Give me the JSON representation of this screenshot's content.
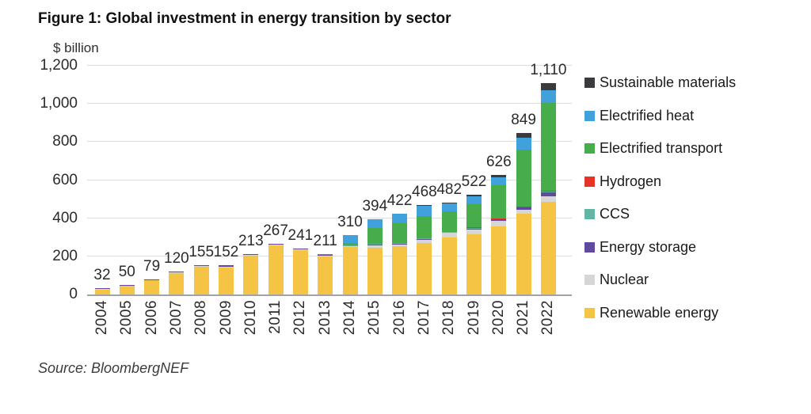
{
  "title": "Figure 1: Global investment in energy transition by sector",
  "y_axis_title": "$ billion",
  "source": "Source: BloombergNEF",
  "colors": {
    "renewable_energy": "#F6C445",
    "nuclear": "#D6D6D6",
    "energy_storage": "#5F4A9E",
    "ccs": "#62B5A5",
    "hydrogen": "#E63323",
    "electrified_transport": "#47AD4A",
    "electrified_heat": "#41A1DC",
    "sustainable_materials": "#3B3B3D",
    "gridline": "#dcdcdc",
    "axis_line": "#a3a3a3"
  },
  "legend": {
    "items": [
      {
        "label": "Sustainable materials",
        "color_key": "sustainable_materials"
      },
      {
        "label": "Electrified heat",
        "color_key": "electrified_heat"
      },
      {
        "label": "Electrified transport",
        "color_key": "electrified_transport"
      },
      {
        "label": "Hydrogen",
        "color_key": "hydrogen"
      },
      {
        "label": "CCS",
        "color_key": "ccs"
      },
      {
        "label": "Energy storage",
        "color_key": "energy_storage"
      },
      {
        "label": "Nuclear",
        "color_key": "nuclear"
      },
      {
        "label": "Renewable energy",
        "color_key": "renewable_energy"
      }
    ]
  },
  "chart_data": {
    "type": "bar",
    "stacked": true,
    "title": "Figure 1: Global investment in energy transition by sector",
    "ylabel": "$ billion",
    "xlabel": "",
    "grid": true,
    "legend_position": "right",
    "ylim": [
      0,
      1200
    ],
    "yticks": [
      {
        "value": 0,
        "label": "0"
      },
      {
        "value": 200,
        "label": "200"
      },
      {
        "value": 400,
        "label": "400"
      },
      {
        "value": 600,
        "label": "600"
      },
      {
        "value": 800,
        "label": "800"
      },
      {
        "value": 1000,
        "label": "1,000"
      },
      {
        "value": 1200,
        "label": "1,200"
      }
    ],
    "categories": [
      "2004",
      "2005",
      "2006",
      "2007",
      "2008",
      "2009",
      "2010",
      "2011",
      "2012",
      "2013",
      "2014",
      "2015",
      "2016",
      "2017",
      "2018",
      "2019",
      "2020",
      "2021",
      "2022"
    ],
    "totals": [
      32,
      50,
      79,
      120,
      155,
      152,
      213,
      267,
      241,
      211,
      310,
      394,
      422,
      468,
      482,
      522,
      626,
      849,
      1110
    ],
    "totals_display": [
      "32",
      "50",
      "79",
      "120",
      "155",
      "152",
      "213",
      "267",
      "241",
      "211",
      "310",
      "394",
      "422",
      "468",
      "482",
      "522",
      "626",
      "849",
      "1,110"
    ],
    "series": [
      {
        "name": "Renewable energy",
        "color_key": "renewable_energy",
        "values": [
          30,
          47,
          75,
          113,
          147,
          143,
          204,
          257,
          231,
          200,
          251,
          246,
          255,
          270,
          298,
          314,
          358,
          424,
          486
        ]
      },
      {
        "name": "Nuclear",
        "color_key": "nuclear",
        "values": [
          1,
          1,
          2,
          3,
          4,
          4,
          4,
          4,
          4,
          4,
          3,
          12,
          6,
          16,
          24,
          28,
          28,
          20,
          27
        ]
      },
      {
        "name": "Energy storage",
        "color_key": "energy_storage",
        "values": [
          1,
          2,
          2,
          4,
          4,
          5,
          5,
          6,
          6,
          4,
          3,
          4,
          8,
          8,
          5,
          6,
          8,
          14,
          25
        ]
      },
      {
        "name": "CCS",
        "color_key": "ccs",
        "values": [
          0,
          0,
          0,
          0,
          0,
          0,
          0,
          0,
          0,
          0,
          1,
          2,
          2,
          2,
          2,
          2,
          3,
          2,
          3
        ]
      },
      {
        "name": "Hydrogen",
        "color_key": "hydrogen",
        "values": [
          0,
          0,
          0,
          0,
          0,
          0,
          0,
          0,
          0,
          0,
          0,
          0,
          0,
          0,
          0,
          1,
          2,
          2,
          2
        ]
      },
      {
        "name": "Electrified transport",
        "color_key": "electrified_transport",
        "values": [
          0,
          0,
          0,
          0,
          0,
          0,
          0,
          0,
          0,
          3,
          12,
          85,
          101,
          117,
          108,
          123,
          174,
          300,
          460
        ]
      },
      {
        "name": "Electrified heat",
        "color_key": "electrified_heat",
        "values": [
          0,
          0,
          0,
          0,
          0,
          0,
          0,
          0,
          0,
          0,
          40,
          45,
          50,
          54,
          41,
          40,
          43,
          62,
          68
        ]
      },
      {
        "name": "Sustainable materials",
        "color_key": "sustainable_materials",
        "values": [
          0,
          0,
          0,
          0,
          0,
          0,
          0,
          0,
          0,
          0,
          0,
          0,
          0,
          1,
          4,
          8,
          10,
          25,
          39
        ]
      }
    ]
  }
}
